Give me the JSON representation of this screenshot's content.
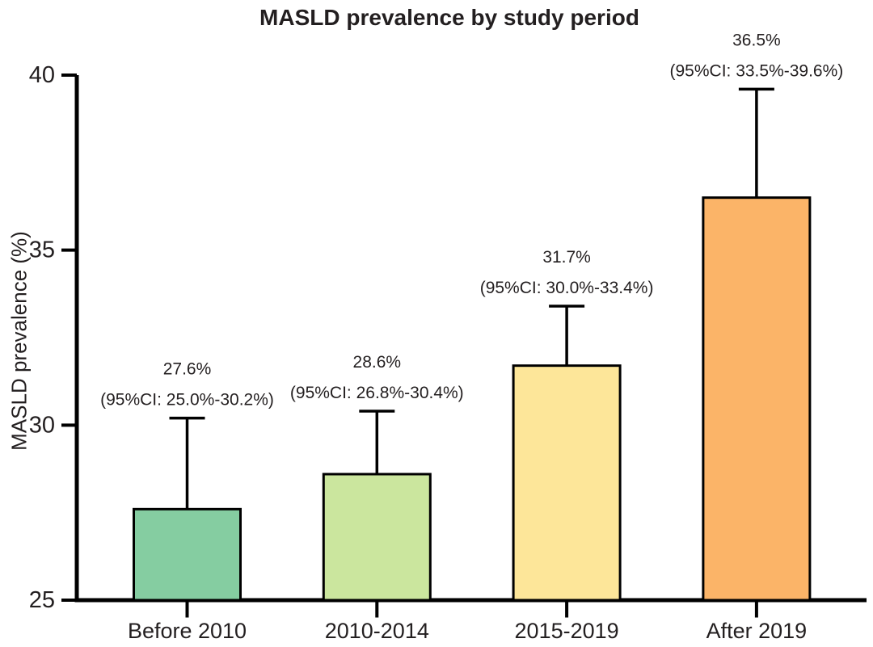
{
  "chart_data": {
    "type": "bar",
    "title": "MASLD prevalence by study period",
    "xlabel": "",
    "ylabel": "MASLD prevalence (%)",
    "ylim": [
      25,
      40
    ],
    "yticks": [
      40,
      35,
      30,
      25
    ],
    "grid": false,
    "legend": false,
    "categories": [
      "Before 2010",
      "2010-2014",
      "2015-2019",
      "After 2019"
    ],
    "values": [
      27.6,
      28.6,
      31.7,
      36.5
    ],
    "ci_lower": [
      25.0,
      26.8,
      30.0,
      33.5
    ],
    "ci_upper": [
      30.2,
      30.4,
      33.4,
      39.6
    ],
    "value_labels": [
      "27.6%",
      "28.6%",
      "31.7%",
      "36.5%"
    ],
    "ci_labels": [
      "(95%CI: 25.0%-30.2%)",
      "(95%CI: 26.8%-30.4%)",
      "(95%CI: 30.0%-33.4%)",
      "(95%CI: 33.5%-39.6%)"
    ],
    "bar_colors": [
      "#85CDA1",
      "#CBE69E",
      "#FDE699",
      "#FBB468"
    ],
    "bar_border_color": "#000000",
    "axis_color": "#000000",
    "text_color": "#231f20"
  }
}
